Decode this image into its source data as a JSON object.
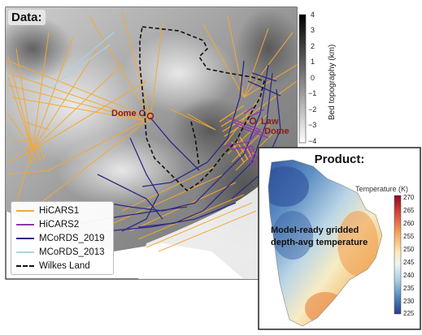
{
  "data_panel": {
    "title": "Data:",
    "site_labels": [
      "Dome C",
      "Law",
      "Dome"
    ],
    "colorbar": {
      "label": "Bed topography (km)",
      "ticks": [
        "4",
        "3",
        "2",
        "1",
        "0",
        "−1",
        "−2",
        "−3",
        "−4"
      ]
    },
    "legend": [
      {
        "label": "HiCARS1",
        "color": "#f5a833",
        "style": "solid"
      },
      {
        "label": "HiCARS2",
        "color": "#8e3aa6",
        "style": "solid"
      },
      {
        "label": "MCoRDS_2019",
        "color": "#2d2a84",
        "style": "solid"
      },
      {
        "label": "MCoRDS_2013",
        "color": "#a9d3e6",
        "style": "solid"
      },
      {
        "label": "Wilkes Land",
        "color": "#111111",
        "style": "dashed"
      }
    ]
  },
  "product_panel": {
    "title": "Product:",
    "annotation_line1": "Model-ready gridded",
    "annotation_line2": "depth-avg temperature",
    "colorbar": {
      "label": "Temperature (K)",
      "ticks": [
        "270",
        "265",
        "260",
        "255",
        "250",
        "245",
        "240",
        "235",
        "230",
        "225"
      ]
    }
  },
  "colors": {
    "site_marker": "#8b1a1a",
    "hicars1": "#f5a833",
    "hicars2": "#8e3aa6",
    "mcords2019": "#2d2a84",
    "mcords2013": "#a9d3e6"
  }
}
